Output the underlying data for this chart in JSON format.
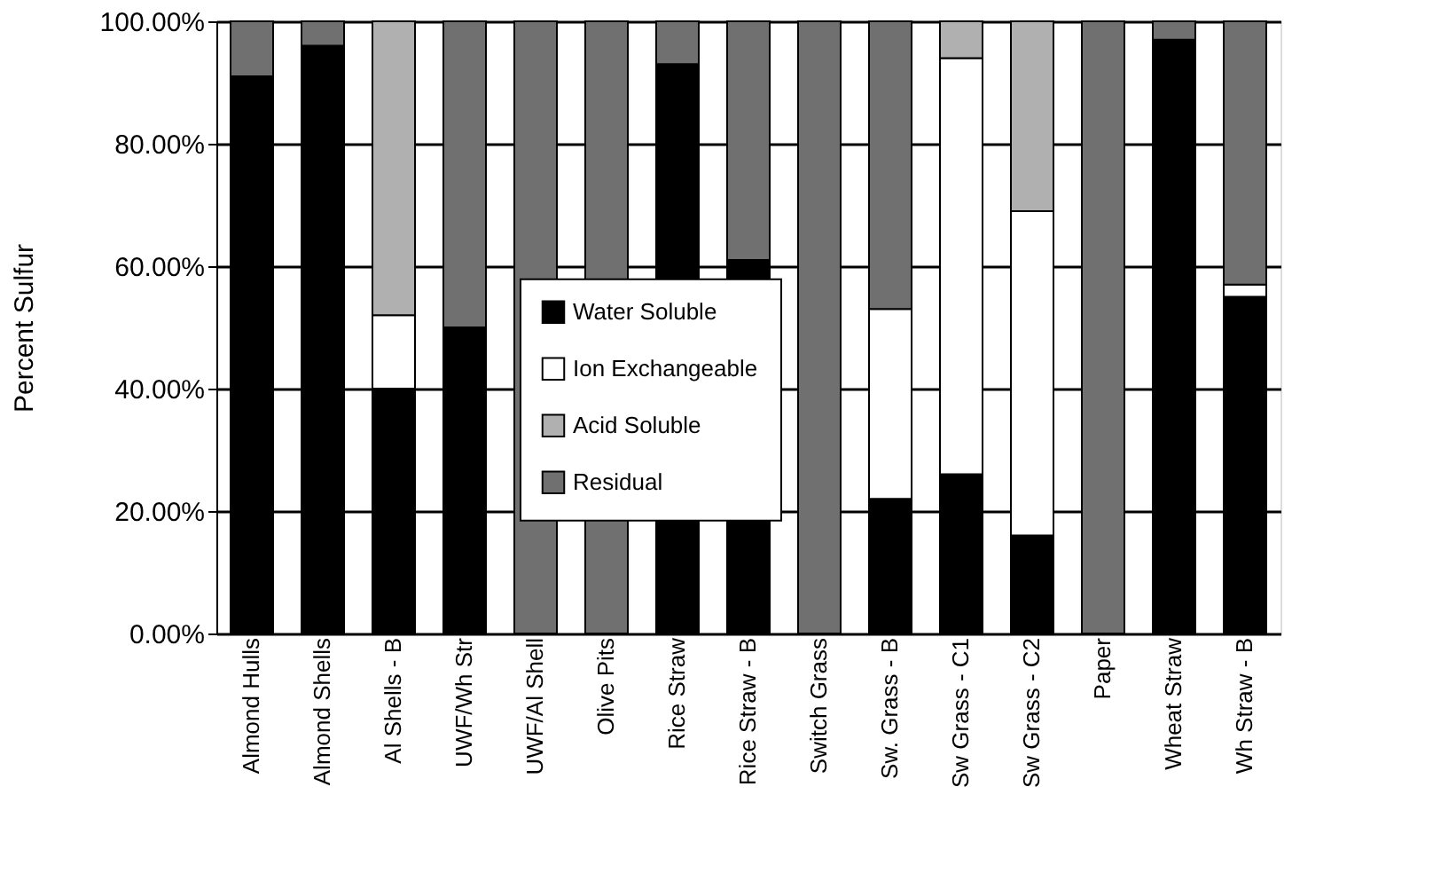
{
  "chart_data": {
    "type": "bar",
    "stacked": true,
    "ylabel": "Percent Sulfur",
    "categories": [
      "Almond Hulls",
      "Almond Shells",
      "Al Shells - B",
      "UWF/Wh Str",
      "UWF/Al Shell",
      "Olive Pits",
      "Rice Straw",
      "Rice Straw - B",
      "Switch Grass",
      "Sw. Grass - B",
      "Sw Grass - C1",
      "Sw Grass - C2",
      "Paper",
      "Wheat Straw",
      "Wh Straw - B"
    ],
    "series": [
      {
        "name": "Water Soluble",
        "color": "#000000",
        "values": [
          91,
          96,
          40,
          50,
          null,
          null,
          93,
          61,
          null,
          22,
          26,
          16,
          null,
          97,
          55
        ]
      },
      {
        "name": "Ion Exchangeable",
        "color": "#ffffff",
        "values": [
          null,
          null,
          12,
          null,
          null,
          null,
          null,
          null,
          null,
          31,
          68,
          53,
          null,
          null,
          2
        ]
      },
      {
        "name": "Acid Soluble",
        "color": "#b0b0b0",
        "values": [
          null,
          null,
          48,
          null,
          null,
          null,
          null,
          null,
          null,
          null,
          6,
          31,
          null,
          null,
          null
        ]
      },
      {
        "name": "Residual",
        "color": "#707070",
        "values": [
          9,
          4,
          null,
          50,
          100,
          100,
          7,
          39,
          100,
          47,
          null,
          null,
          100,
          3,
          43
        ]
      }
    ],
    "ylim": [
      0,
      100
    ],
    "yticks": [
      {
        "value": 0,
        "label": "0.00%"
      },
      {
        "value": 20,
        "label": "20.00%"
      },
      {
        "value": 40,
        "label": "40.00%"
      },
      {
        "value": 60,
        "label": "60.00%"
      },
      {
        "value": 80,
        "label": "80.00%"
      },
      {
        "value": 100,
        "label": "100.00%"
      }
    ],
    "grid": "y",
    "legend": "center"
  }
}
